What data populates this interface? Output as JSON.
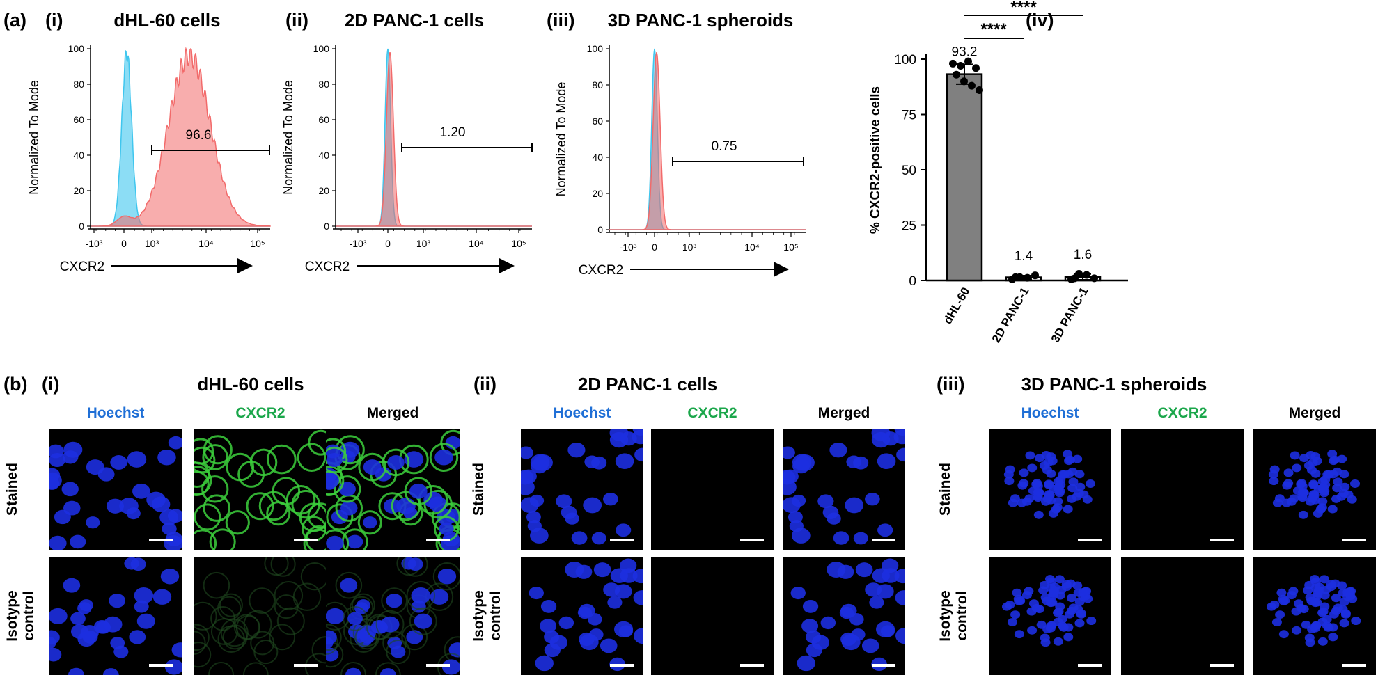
{
  "panel_a": {
    "label": "(a)",
    "histograms": [
      {
        "roman": "(i)",
        "title": "dHL-60 cells",
        "gate_value": "96.6",
        "ylabel": "Normalized To Mode",
        "xlabel": "CXCR2",
        "y_ticks": [
          "100",
          "80",
          "60",
          "40",
          "20",
          "0"
        ],
        "x_ticks": [
          "-10³",
          "0",
          "10³",
          "10⁴",
          "10⁵"
        ]
      },
      {
        "roman": "(ii)",
        "title": "2D PANC-1 cells",
        "gate_value": "1.20",
        "ylabel": "Normalized To Mode",
        "xlabel": "CXCR2",
        "y_ticks": [
          "100",
          "80",
          "60",
          "40",
          "20",
          "0"
        ],
        "x_ticks": [
          "-10³",
          "0",
          "10³",
          "10⁴",
          "10⁵"
        ]
      },
      {
        "roman": "(iii)",
        "title": "3D PANC-1 spheroids",
        "gate_value": "0.75",
        "ylabel": "Normalized To Mode",
        "xlabel": "CXCR2",
        "y_ticks": [
          "100",
          "80",
          "60",
          "40",
          "20",
          "0"
        ],
        "x_ticks": [
          "-10³",
          "0",
          "10³",
          "10⁴",
          "10⁵"
        ]
      }
    ],
    "bar_panel": {
      "roman": "(iv)",
      "significance": [
        "****",
        "****"
      ]
    }
  },
  "chart_data": {
    "type": "bar",
    "categories": [
      "dHL-60",
      "2D PANC-1",
      "3D PANC-1"
    ],
    "values": [
      93.2,
      1.4,
      1.6
    ],
    "value_labels": [
      "93.2",
      "1.4",
      "1.6"
    ],
    "errors": [
      4.5,
      0.8,
      1.3
    ],
    "points": [
      [
        98,
        97,
        99,
        96,
        93,
        90,
        88,
        86
      ],
      [
        0.5,
        1.5,
        1.2,
        2.3,
        1.5
      ],
      [
        0.5,
        3.0,
        2.5,
        1.0,
        1.0
      ]
    ],
    "ylabel": "% CXCR2-positive cells",
    "ylim": [
      0,
      100
    ],
    "y_ticks": [
      "100",
      "75",
      "50",
      "25",
      "0"
    ],
    "bar_color": "#808080"
  },
  "panel_b": {
    "label": "(b)",
    "groups": [
      {
        "roman": "(i)",
        "title": "dHL-60 cells",
        "columns": [
          "Hoechst",
          "CXCR2",
          "Merged"
        ],
        "rows": [
          "Stained",
          "Isotype\ncontrol"
        ]
      },
      {
        "roman": "(ii)",
        "title": "2D PANC-1 cells",
        "columns": [
          "Hoechst",
          "CXCR2",
          "Merged"
        ],
        "rows": [
          "Stained",
          "Isotype\ncontrol"
        ]
      },
      {
        "roman": "(iii)",
        "title": "3D PANC-1 spheroids",
        "columns": [
          "Hoechst",
          "CXCR2",
          "Merged"
        ],
        "rows": [
          "Stained",
          "Isotype\ncontrol"
        ]
      }
    ],
    "colors": {
      "hoechst": "#1f6fd6",
      "cxcr2": "#1aa64a",
      "merged": "#000000"
    }
  },
  "colors": {
    "isotype": "#3fc6ee",
    "stained": "#f26a6a"
  }
}
